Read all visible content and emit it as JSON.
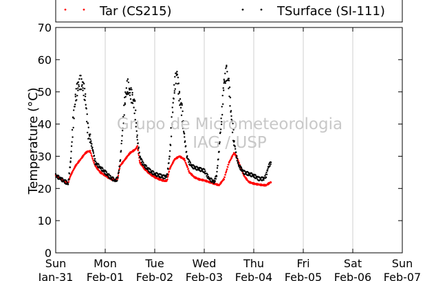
{
  "chart_data": {
    "type": "scatter",
    "ylabel": "Temperature (°C)",
    "ylim": [
      0,
      70
    ],
    "yticks": [
      0,
      10,
      20,
      30,
      40,
      50,
      60,
      70
    ],
    "x_range_days": [
      "2016-01-31",
      "2016-02-07"
    ],
    "xticks": [
      {
        "day": "Sun",
        "date": "Jan-31"
      },
      {
        "day": "Mon",
        "date": "Feb-01"
      },
      {
        "day": "Tue",
        "date": "Feb-02"
      },
      {
        "day": "Wed",
        "date": "Feb-03"
      },
      {
        "day": "Thu",
        "date": "Feb-04"
      },
      {
        "day": "Fri",
        "date": "Feb-05"
      },
      {
        "day": "Sat",
        "date": "Feb-06"
      },
      {
        "day": "Sun",
        "date": "Feb-07"
      }
    ],
    "grid": "vertical",
    "legend_position": "top",
    "watermark": [
      "Grupo de Micrometeorologia",
      "IAG / USP"
    ],
    "series": [
      {
        "name": "Tar (CS215)",
        "color": "#ff0000",
        "x_days": [
          0.0,
          0.1,
          0.2,
          0.25,
          0.3,
          0.4,
          0.5,
          0.6,
          0.65,
          0.7,
          0.75,
          0.8,
          0.9,
          1.0,
          1.1,
          1.2,
          1.25,
          1.3,
          1.4,
          1.5,
          1.6,
          1.65,
          1.7,
          1.8,
          1.9,
          2.0,
          2.1,
          2.2,
          2.25,
          2.3,
          2.4,
          2.5,
          2.6,
          2.65,
          2.7,
          2.8,
          2.9,
          3.0,
          3.1,
          3.2,
          3.3,
          3.4,
          3.5,
          3.6,
          3.65,
          3.7,
          3.8,
          3.9,
          4.0,
          4.1,
          4.2,
          4.25,
          4.3,
          4.35
        ],
        "y": [
          24,
          23,
          22,
          21.5,
          24,
          27,
          29,
          31,
          31.5,
          31.5,
          29,
          27,
          25,
          24,
          23,
          22.5,
          23,
          27,
          29,
          31,
          32,
          33,
          28,
          26,
          24.5,
          23.5,
          22.8,
          22.3,
          22.5,
          26,
          29,
          30,
          29,
          27,
          25,
          23.5,
          22.8,
          22.5,
          22,
          21.5,
          21,
          23,
          28,
          31,
          30,
          28,
          24,
          22,
          21.5,
          21.2,
          21,
          21,
          21.5,
          22
        ]
      },
      {
        "name": "TSurface (SI-111)",
        "color": "#000000",
        "x_days": [
          0.0,
          0.1,
          0.2,
          0.25,
          0.3,
          0.35,
          0.4,
          0.45,
          0.5,
          0.55,
          0.6,
          0.65,
          0.7,
          0.75,
          0.8,
          0.9,
          1.0,
          1.1,
          1.2,
          1.25,
          1.3,
          1.35,
          1.4,
          1.45,
          1.5,
          1.55,
          1.6,
          1.65,
          1.7,
          1.75,
          1.8,
          1.9,
          2.0,
          2.1,
          2.2,
          2.25,
          2.3,
          2.35,
          2.4,
          2.45,
          2.5,
          2.55,
          2.6,
          2.65,
          2.7,
          2.75,
          2.8,
          2.9,
          3.0,
          3.1,
          3.2,
          3.25,
          3.3,
          3.35,
          3.4,
          3.45,
          3.5,
          3.55,
          3.6,
          3.65,
          3.7,
          3.75,
          3.8,
          3.9,
          4.0,
          4.1,
          4.2,
          4.25,
          4.3,
          4.35
        ],
        "y": [
          24,
          23,
          22,
          21.5,
          28,
          40,
          48,
          52,
          53,
          52,
          48,
          38,
          35,
          32,
          28,
          26.5,
          25,
          23.5,
          22.5,
          23,
          28,
          38,
          48,
          52,
          50,
          48,
          45,
          35,
          30,
          28,
          27,
          25.5,
          24.5,
          24,
          23.5,
          24,
          30,
          42,
          52,
          56,
          48,
          44,
          36,
          30,
          28,
          27,
          26.5,
          26,
          25.5,
          23,
          22,
          24,
          32,
          42,
          53,
          56,
          52,
          42,
          35,
          30,
          27,
          26,
          25,
          24.5,
          24,
          23,
          23,
          24,
          27,
          28
        ]
      }
    ]
  }
}
